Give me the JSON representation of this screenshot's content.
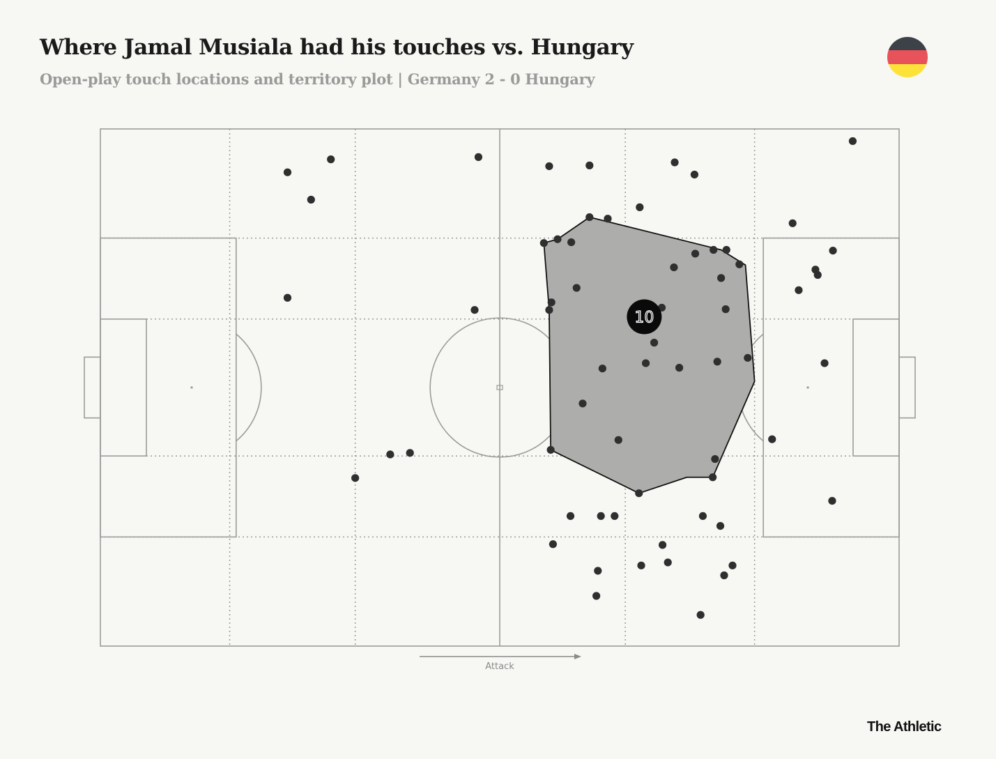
{
  "header": {
    "title": "Where Jamal Musiala had his touches vs. Hungary",
    "subtitle": "Open-play touch locations and territory plot |  Germany 2 - 0 Hungary"
  },
  "flag": {
    "colors": [
      "#3d4148",
      "#e8525a",
      "#fde23a"
    ]
  },
  "footer": {
    "brand": "The Athletic"
  },
  "chart_data": {
    "type": "scatter",
    "x_range": [
      0,
      105
    ],
    "y_range": [
      0,
      68
    ],
    "direction_label": "Attack",
    "player_number": "10",
    "average_position": [
      71.5,
      43.3
    ],
    "colors": {
      "pitch_background": "#f7f7f3",
      "lines": "#9b9b9b",
      "touch": "#2f2f2f",
      "hull_fill": "#adadab",
      "hull_stroke": "#111111",
      "average_marker": "#0a0a0a"
    },
    "touches": [
      [
        24.6,
        62.3
      ],
      [
        30.3,
        64.0
      ],
      [
        27.7,
        58.7
      ],
      [
        49.7,
        64.3
      ],
      [
        59.0,
        63.1
      ],
      [
        64.3,
        63.2
      ],
      [
        75.5,
        63.6
      ],
      [
        78.1,
        62.0
      ],
      [
        70.9,
        57.7
      ],
      [
        98.9,
        66.4
      ],
      [
        91.0,
        55.6
      ],
      [
        24.6,
        45.8
      ],
      [
        49.2,
        44.2
      ],
      [
        60.1,
        53.5
      ],
      [
        66.7,
        56.2
      ],
      [
        64.3,
        56.4
      ],
      [
        58.3,
        53.0
      ],
      [
        61.9,
        53.1
      ],
      [
        82.3,
        52.1
      ],
      [
        80.6,
        52.1
      ],
      [
        78.2,
        51.6
      ],
      [
        84.0,
        50.2
      ],
      [
        75.4,
        49.8
      ],
      [
        81.6,
        48.4
      ],
      [
        62.6,
        47.1
      ],
      [
        59.3,
        45.2
      ],
      [
        59.0,
        44.2
      ],
      [
        73.8,
        44.5
      ],
      [
        82.2,
        44.3
      ],
      [
        72.8,
        39.9
      ],
      [
        66.0,
        36.5
      ],
      [
        71.7,
        37.2
      ],
      [
        76.1,
        36.6
      ],
      [
        81.1,
        37.4
      ],
      [
        85.1,
        37.9
      ],
      [
        63.4,
        31.9
      ],
      [
        68.1,
        27.1
      ],
      [
        59.2,
        25.8
      ],
      [
        80.8,
        24.6
      ],
      [
        80.5,
        22.2
      ],
      [
        70.8,
        20.1
      ],
      [
        38.1,
        25.2
      ],
      [
        40.7,
        25.4
      ],
      [
        33.5,
        22.1
      ],
      [
        61.8,
        17.1
      ],
      [
        65.8,
        17.1
      ],
      [
        67.6,
        17.1
      ],
      [
        79.2,
        17.1
      ],
      [
        81.5,
        15.8
      ],
      [
        59.5,
        13.4
      ],
      [
        73.9,
        13.3
      ],
      [
        71.1,
        10.6
      ],
      [
        74.6,
        11.0
      ],
      [
        83.1,
        10.6
      ],
      [
        82.0,
        9.3
      ],
      [
        65.4,
        9.9
      ],
      [
        65.2,
        6.6
      ],
      [
        78.9,
        4.1
      ],
      [
        91.8,
        46.8
      ],
      [
        94.0,
        49.5
      ],
      [
        96.3,
        52.0
      ],
      [
        94.3,
        48.8
      ],
      [
        95.2,
        37.2
      ],
      [
        88.3,
        27.2
      ],
      [
        96.2,
        19.1
      ]
    ],
    "hull": [
      [
        59.2,
        25.8
      ],
      [
        70.8,
        20.1
      ],
      [
        77.1,
        22.2
      ],
      [
        80.5,
        22.2
      ],
      [
        86.0,
        34.8
      ],
      [
        84.8,
        50.1
      ],
      [
        81.6,
        52.1
      ],
      [
        64.3,
        56.4
      ],
      [
        60.1,
        53.5
      ],
      [
        58.3,
        53.0
      ],
      [
        59.0,
        44.2
      ]
    ]
  }
}
